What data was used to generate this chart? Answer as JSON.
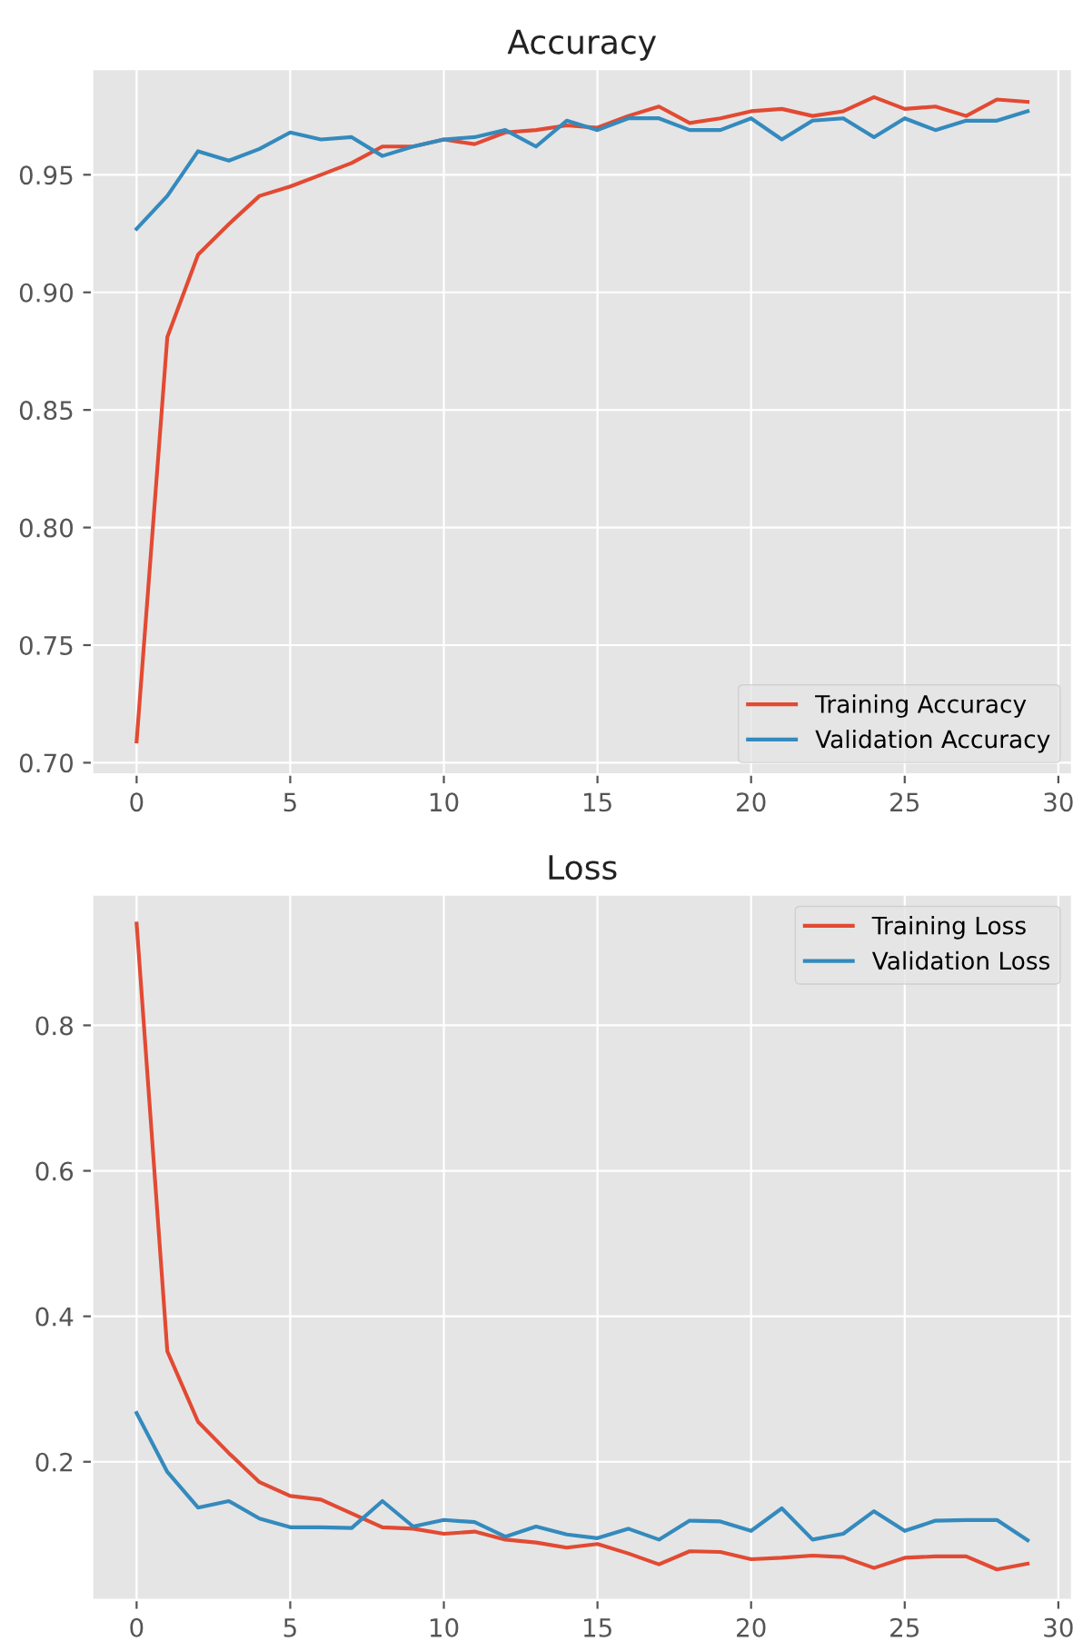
{
  "chart_data": [
    {
      "type": "line",
      "title": "Accuracy",
      "x": [
        0,
        1,
        2,
        3,
        4,
        5,
        6,
        7,
        8,
        9,
        10,
        11,
        12,
        13,
        14,
        15,
        16,
        17,
        18,
        19,
        20,
        21,
        22,
        23,
        24,
        25,
        26,
        27,
        28,
        29
      ],
      "series": [
        {
          "name": "Training Accuracy",
          "color": "#e24a33",
          "values": [
            0.709,
            0.881,
            0.916,
            0.929,
            0.941,
            0.945,
            0.95,
            0.955,
            0.962,
            0.962,
            0.965,
            0.963,
            0.968,
            0.969,
            0.971,
            0.97,
            0.975,
            0.979,
            0.972,
            0.974,
            0.977,
            0.978,
            0.975,
            0.977,
            0.983,
            0.978,
            0.979,
            0.975,
            0.982,
            0.981
          ]
        },
        {
          "name": "Validation Accuracy",
          "color": "#348abd",
          "values": [
            0.927,
            0.941,
            0.96,
            0.956,
            0.961,
            0.968,
            0.965,
            0.966,
            0.958,
            0.962,
            0.965,
            0.966,
            0.969,
            0.962,
            0.973,
            0.969,
            0.974,
            0.974,
            0.969,
            0.969,
            0.974,
            0.965,
            0.973,
            0.974,
            0.966,
            0.974,
            0.969,
            0.973,
            0.973,
            0.977
          ]
        }
      ],
      "xlim": [
        -1.45,
        30.45
      ],
      "xticks": [
        0,
        5,
        10,
        15,
        20,
        25,
        30
      ],
      "ylim": [
        0.695,
        0.995
      ],
      "yticks": [
        {
          "value": 0.7,
          "label": "0.70"
        },
        {
          "value": 0.75,
          "label": "0.75"
        },
        {
          "value": 0.8,
          "label": "0.80"
        },
        {
          "value": 0.85,
          "label": "0.85"
        },
        {
          "value": 0.9,
          "label": "0.90"
        },
        {
          "value": 0.95,
          "label": "0.95"
        }
      ],
      "grid": true,
      "legend": "lower right",
      "marker": "none",
      "line_style": "solid"
    },
    {
      "type": "line",
      "title": "Loss",
      "x": [
        0,
        1,
        2,
        3,
        4,
        5,
        6,
        7,
        8,
        9,
        10,
        11,
        12,
        13,
        14,
        15,
        16,
        17,
        18,
        19,
        20,
        21,
        22,
        23,
        24,
        25,
        26,
        27,
        28,
        29
      ],
      "series": [
        {
          "name": "Training Loss",
          "color": "#e24a33",
          "values": [
            0.94,
            0.352,
            0.255,
            0.212,
            0.172,
            0.153,
            0.148,
            0.129,
            0.11,
            0.108,
            0.101,
            0.104,
            0.093,
            0.089,
            0.082,
            0.087,
            0.074,
            0.059,
            0.077,
            0.076,
            0.066,
            0.068,
            0.071,
            0.069,
            0.054,
            0.068,
            0.07,
            0.07,
            0.052,
            0.06
          ]
        },
        {
          "name": "Validation Loss",
          "color": "#348abd",
          "values": [
            0.267,
            0.186,
            0.137,
            0.146,
            0.122,
            0.11,
            0.11,
            0.109,
            0.146,
            0.111,
            0.12,
            0.117,
            0.097,
            0.111,
            0.1,
            0.095,
            0.108,
            0.093,
            0.119,
            0.118,
            0.105,
            0.136,
            0.093,
            0.101,
            0.132,
            0.105,
            0.119,
            0.12,
            0.12,
            0.092
          ]
        }
      ],
      "xlim": [
        -1.45,
        30.45
      ],
      "xticks": [
        0,
        5,
        10,
        15,
        20,
        25,
        30
      ],
      "ylim": [
        0.01,
        0.98
      ],
      "yticks": [
        0.2,
        0.4,
        0.6,
        0.8
      ],
      "grid": true,
      "legend": "upper right",
      "marker": "none",
      "line_style": "solid"
    }
  ]
}
